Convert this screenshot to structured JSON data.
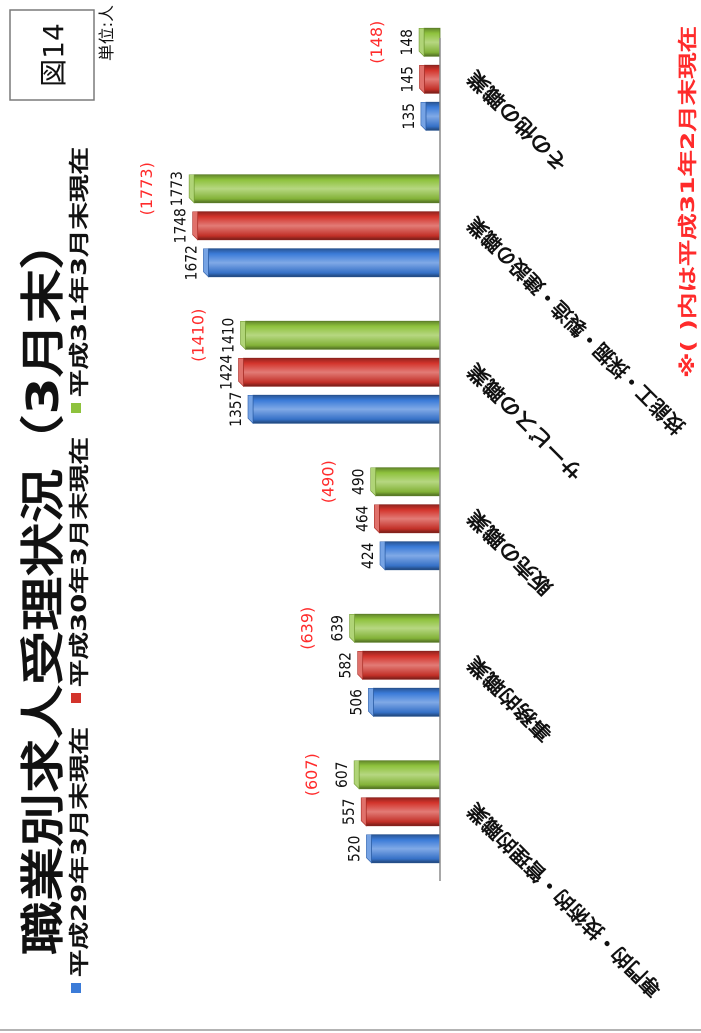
{
  "figure_label": "図14",
  "unit_label": "単位:人",
  "footnote": "※( )内は平成31年2月末現在",
  "colors": {
    "series": [
      "#3b7bd8",
      "#d3342c",
      "#8ec23d"
    ],
    "reference_label": "#ff2b2b",
    "axis": "#8c8c8c"
  },
  "chart_data": {
    "type": "bar",
    "title": "職業別求人受理状況（3月末）",
    "categories": [
      "専門的・技術的・管理的職業",
      "事務的職業",
      "販売の職業",
      "サービスの職業",
      "技能工・採掘・製造・建設の職業",
      "その他の職業"
    ],
    "series": [
      {
        "name": "平成29年3月末現在",
        "values": [
          520,
          506,
          424,
          1357,
          1672,
          135
        ]
      },
      {
        "name": "平成30年3月末現在",
        "values": [
          557,
          582,
          464,
          1424,
          1748,
          145
        ]
      },
      {
        "name": "平成31年3月末現在",
        "values": [
          607,
          639,
          490,
          1410,
          1773,
          148
        ]
      }
    ],
    "reference_labels": [
      "(607)",
      "(639)",
      "(490)",
      "(1410)",
      "(1773)",
      "(148)"
    ],
    "ylim": [
      0,
      2000
    ],
    "value_axis_visible": false,
    "grid": false,
    "legend_position": "top",
    "data_labels": true
  }
}
